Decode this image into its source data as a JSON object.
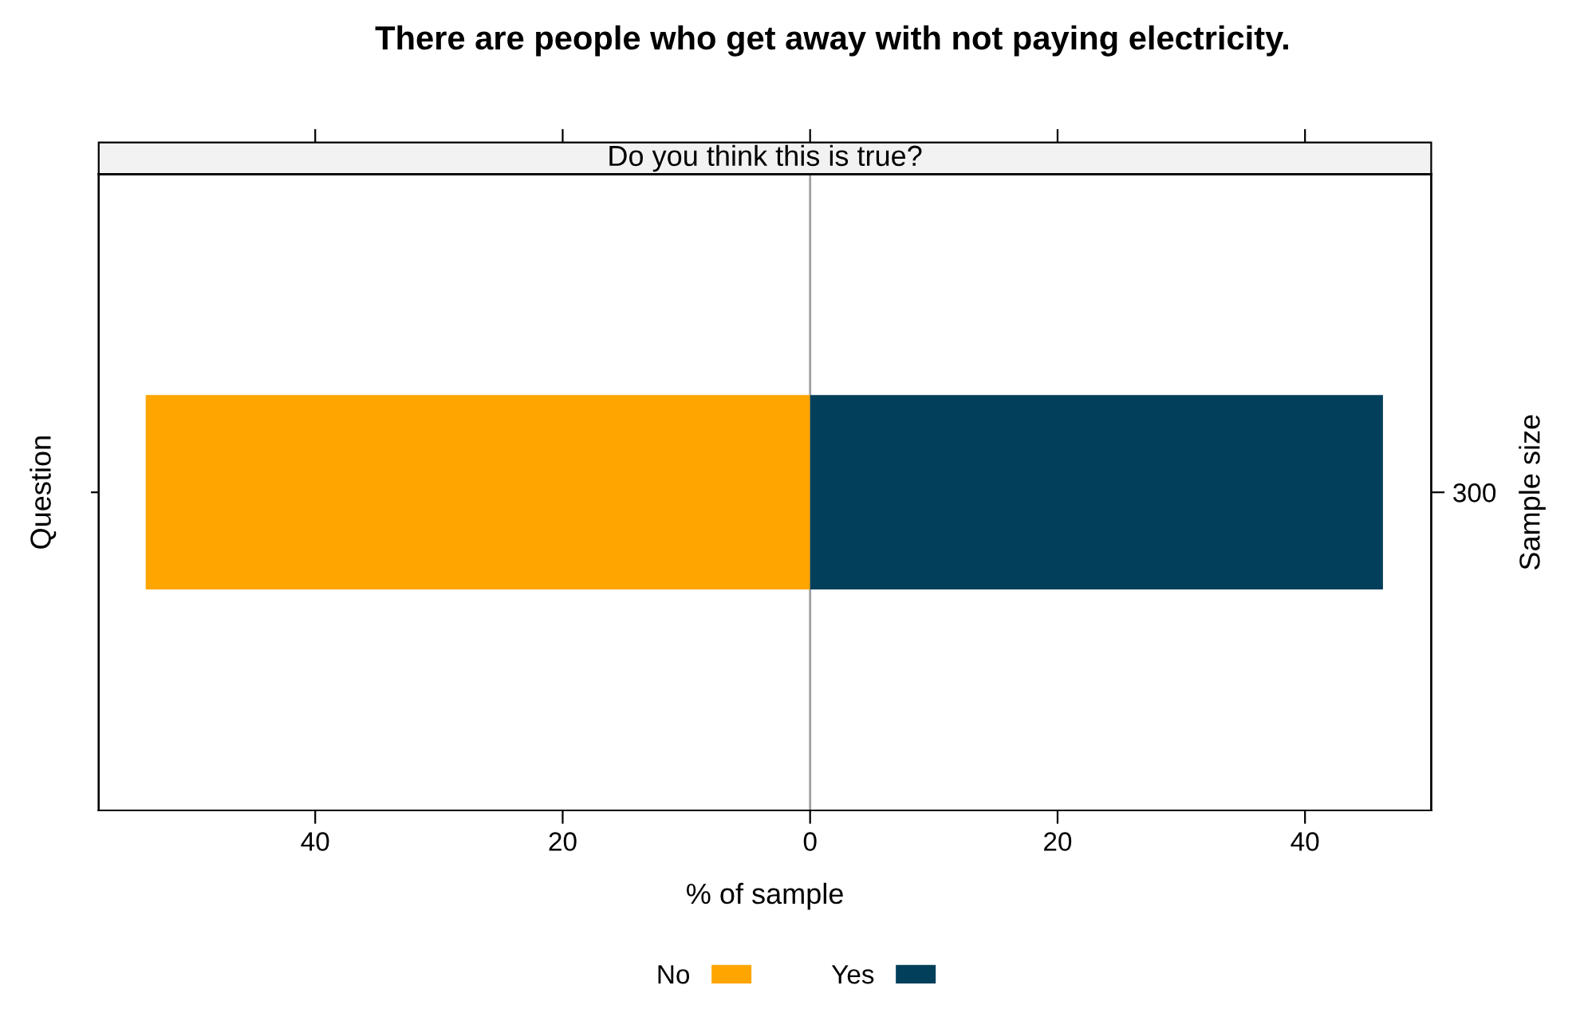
{
  "chart_data": {
    "type": "bar",
    "orientation": "horizontal",
    "title": "There are people who get away with not paying electricity.",
    "subtitle": "Do you think this is true?",
    "xlabel": "% of sample",
    "ylabel": "Question",
    "y2label": "Sample size",
    "stacked": true,
    "categories": [
      null
    ],
    "y2_categories": [
      "300"
    ],
    "series": [
      {
        "name": "No",
        "color": "#ffa500",
        "values": [
          -53.7
        ]
      },
      {
        "name": "Yes",
        "color": "#023f5a",
        "values": [
          46.3
        ]
      }
    ],
    "xlim": [
      -57.5,
      50.2
    ],
    "xticks": [
      {
        "value": -40,
        "label": "40"
      },
      {
        "value": -20,
        "label": "20"
      },
      0,
      20,
      40
    ],
    "ref_lines": [
      {
        "axis": "x",
        "value": 0,
        "color": "#a0a0a0"
      }
    ],
    "grid": false,
    "legend": "bottom"
  }
}
